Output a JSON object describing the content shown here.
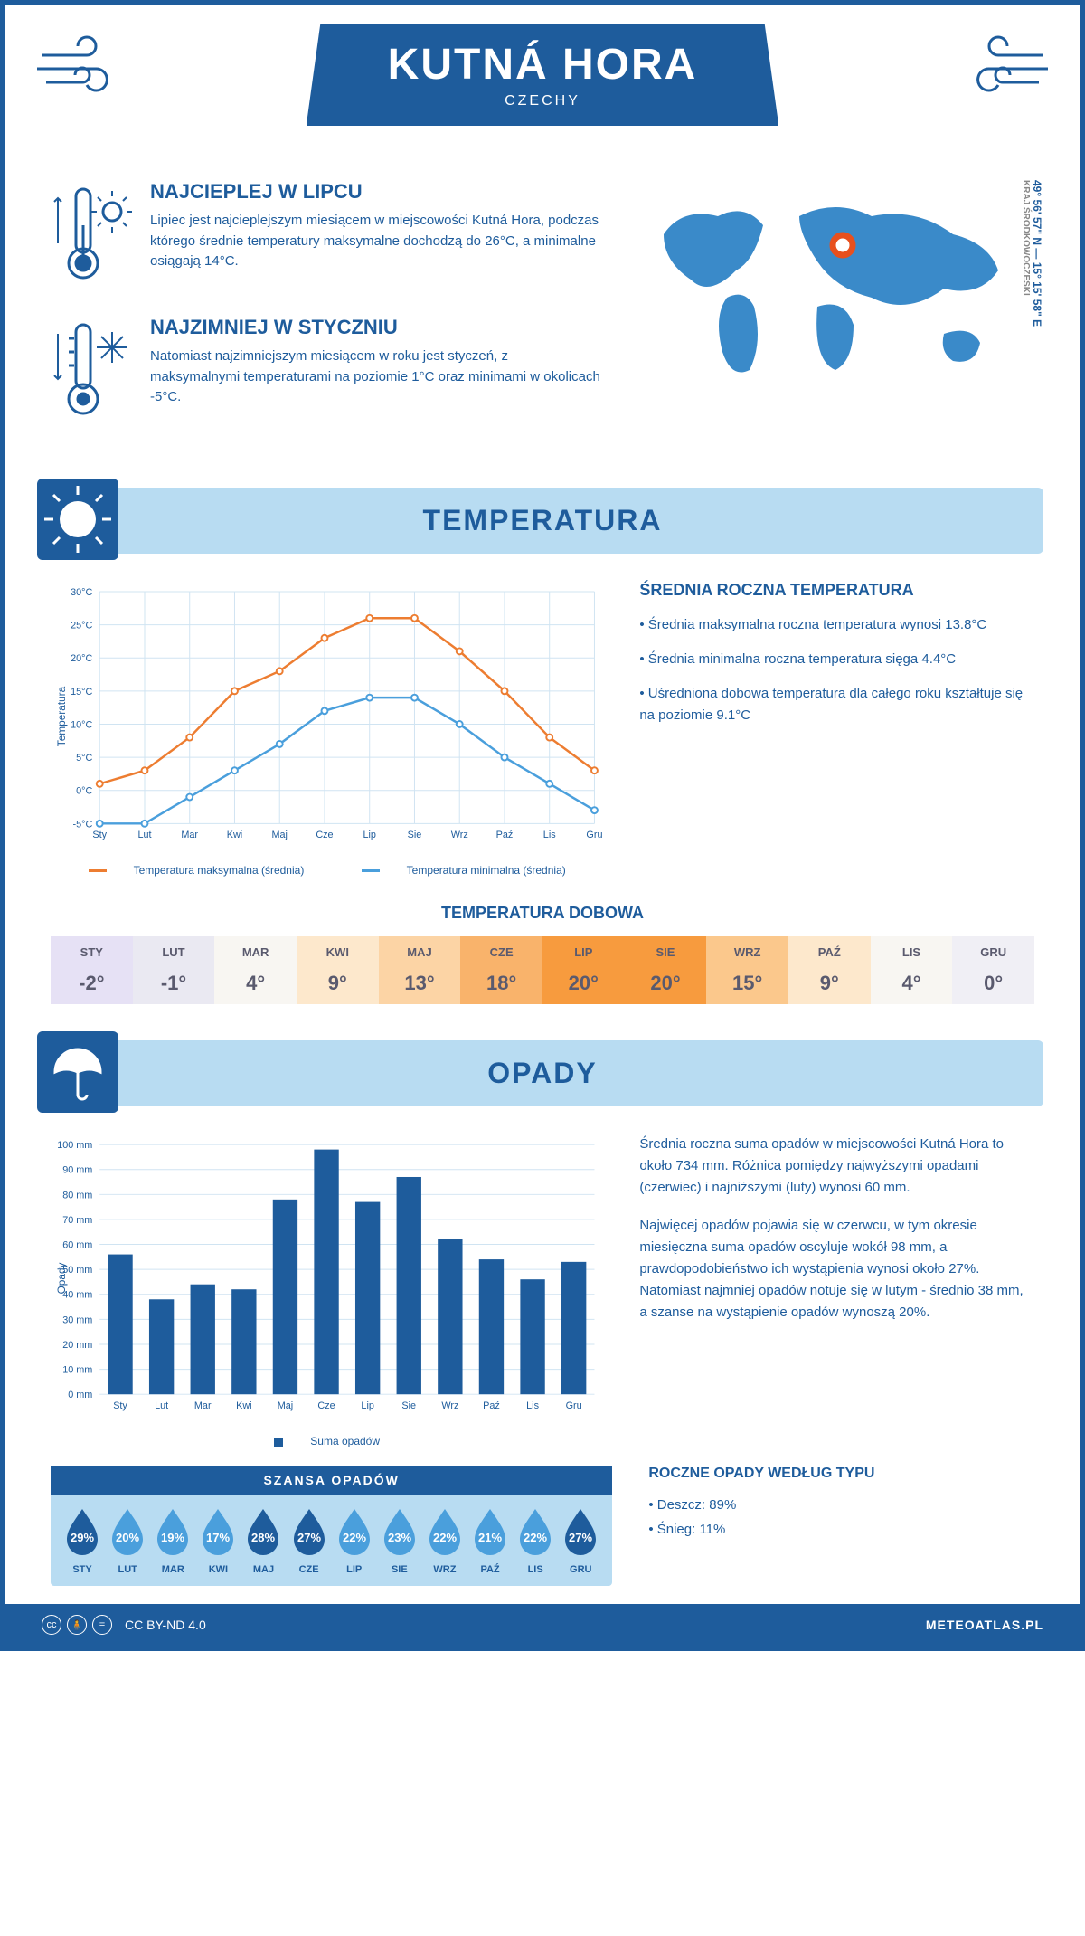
{
  "header": {
    "title": "KUTNÁ HORA",
    "country": "CZECHY"
  },
  "intro": {
    "warm": {
      "title": "NAJCIEPLEJ W LIPCU",
      "text": "Lipiec jest najcieplejszym miesiącem w miejscowości Kutná Hora, podczas którego średnie temperatury maksymalne dochodzą do 26°C, a minimalne osiągają 14°C."
    },
    "cold": {
      "title": "NAJZIMNIEJ W STYCZNIU",
      "text": "Natomiast najzimniejszym miesiącem w roku jest styczeń, z maksymalnymi temperaturami na poziomie 1°C oraz minimami w okolicach -5°C."
    },
    "coords": "49° 56' 57\" N — 15° 15' 58\" E",
    "region": "KRAJ ŚRODKOWOCZESKI"
  },
  "temperature": {
    "section_title": "TEMPERATURA",
    "chart": {
      "type": "line",
      "months": [
        "Sty",
        "Lut",
        "Mar",
        "Kwi",
        "Maj",
        "Cze",
        "Lip",
        "Sie",
        "Wrz",
        "Paź",
        "Lis",
        "Gru"
      ],
      "ylim": [
        -5,
        30
      ],
      "ytick_step": 5,
      "ylabel": "Temperatura",
      "series": [
        {
          "name": "Temperatura maksymalna (średnia)",
          "color": "#ed7d31",
          "values": [
            1,
            3,
            8,
            15,
            18,
            23,
            26,
            26,
            21,
            15,
            8,
            3
          ]
        },
        {
          "name": "Temperatura minimalna (średnia)",
          "color": "#4a9fdc",
          "values": [
            -5,
            -5,
            -1,
            3,
            7,
            12,
            14,
            14,
            10,
            5,
            1,
            -3
          ]
        }
      ],
      "grid_color": "#d0e4f2",
      "legend_max": "Temperatura maksymalna (średnia)",
      "legend_min": "Temperatura minimalna (średnia)"
    },
    "annual": {
      "title": "ŚREDNIA ROCZNA TEMPERATURA",
      "items": [
        "Średnia maksymalna roczna temperatura wynosi 13.8°C",
        "Średnia minimalna roczna temperatura sięga 4.4°C",
        "Uśredniona dobowa temperatura dla całego roku kształtuje się na poziomie 9.1°C"
      ]
    },
    "daily": {
      "title": "TEMPERATURA DOBOWA",
      "months": [
        "STY",
        "LUT",
        "MAR",
        "KWI",
        "MAJ",
        "CZE",
        "LIP",
        "SIE",
        "WRZ",
        "PAŹ",
        "LIS",
        "GRU"
      ],
      "values": [
        "-2°",
        "-1°",
        "4°",
        "9°",
        "13°",
        "18°",
        "20°",
        "20°",
        "15°",
        "9°",
        "4°",
        "0°"
      ],
      "cell_colors": [
        "#e6e1f5",
        "#eae9f2",
        "#f8f6f2",
        "#fde8cc",
        "#fcd4a5",
        "#f9b36b",
        "#f79b3e",
        "#f79b3e",
        "#fbc88c",
        "#fde8cc",
        "#f8f6f2",
        "#f0eff5"
      ],
      "text_color": "#5a5a6e"
    }
  },
  "precipitation": {
    "section_title": "OPADY",
    "chart": {
      "type": "bar",
      "months": [
        "Sty",
        "Lut",
        "Mar",
        "Kwi",
        "Maj",
        "Cze",
        "Lip",
        "Sie",
        "Wrz",
        "Paź",
        "Lis",
        "Gru"
      ],
      "values": [
        56,
        38,
        44,
        42,
        78,
        98,
        77,
        87,
        62,
        54,
        46,
        53
      ],
      "ylim": [
        0,
        100
      ],
      "ytick_step": 10,
      "ylabel": "Opady",
      "bar_color": "#1e5c9c",
      "grid_color": "#d0e4f2",
      "legend": "Suma opadów"
    },
    "text1": "Średnia roczna suma opadów w miejscowości Kutná Hora to około 734 mm. Różnica pomiędzy najwyższymi opadami (czerwiec) i najniższymi (luty) wynosi 60 mm.",
    "text2": "Najwięcej opadów pojawia się w czerwcu, w tym okresie miesięczna suma opadów oscyluje wokół 98 mm, a prawdopodobieństwo ich wystąpienia wynosi około 27%. Natomiast najmniej opadów notuje się w lutym - średnio 38 mm, a szanse na wystąpienie opadów wynoszą 20%.",
    "chance": {
      "title": "SZANSA OPADÓW",
      "months": [
        "STY",
        "LUT",
        "MAR",
        "KWI",
        "MAJ",
        "CZE",
        "LIP",
        "SIE",
        "WRZ",
        "PAŹ",
        "LIS",
        "GRU"
      ],
      "values": [
        "29%",
        "20%",
        "19%",
        "17%",
        "28%",
        "27%",
        "22%",
        "23%",
        "22%",
        "21%",
        "22%",
        "27%"
      ],
      "drop_colors": [
        "#1e5c9c",
        "#4a9fdc",
        "#4a9fdc",
        "#4a9fdc",
        "#1e5c9c",
        "#1e5c9c",
        "#4a9fdc",
        "#4a9fdc",
        "#4a9fdc",
        "#4a9fdc",
        "#4a9fdc",
        "#1e5c9c"
      ]
    },
    "type": {
      "title": "ROCZNE OPADY WEDŁUG TYPU",
      "items": [
        "Deszcz: 89%",
        "Śnieg: 11%"
      ]
    }
  },
  "footer": {
    "license": "CC BY-ND 4.0",
    "brand": "METEOATLAS.PL"
  },
  "colors": {
    "primary": "#1e5c9c",
    "light_blue": "#b8dcf2"
  }
}
